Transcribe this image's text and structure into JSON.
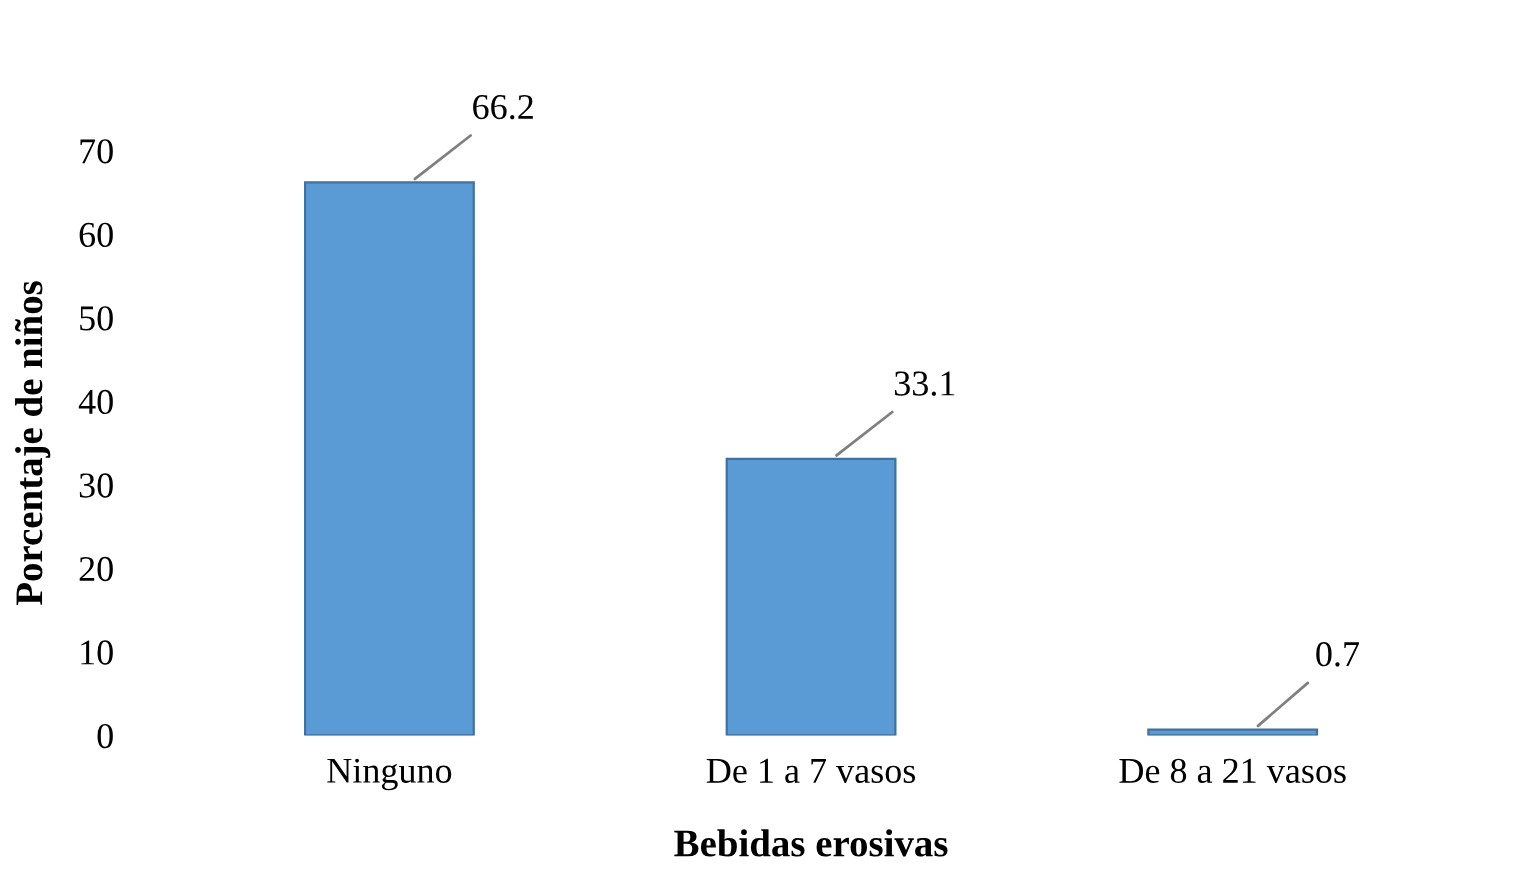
{
  "chart_data": {
    "type": "bar",
    "xlabel": "Bebidas erosivas",
    "ylabel": "Porcentaje de niños",
    "categories": [
      "Ninguno",
      "De 1 a 7 vasos",
      "De 8 a 21 vasos"
    ],
    "values": [
      66.2,
      33.1,
      0.7
    ],
    "color": "#5b9bd5",
    "ylim": [
      0,
      70
    ],
    "yticks": [
      0,
      10,
      20,
      30,
      40,
      50,
      60,
      70
    ],
    "data_labels": true
  }
}
